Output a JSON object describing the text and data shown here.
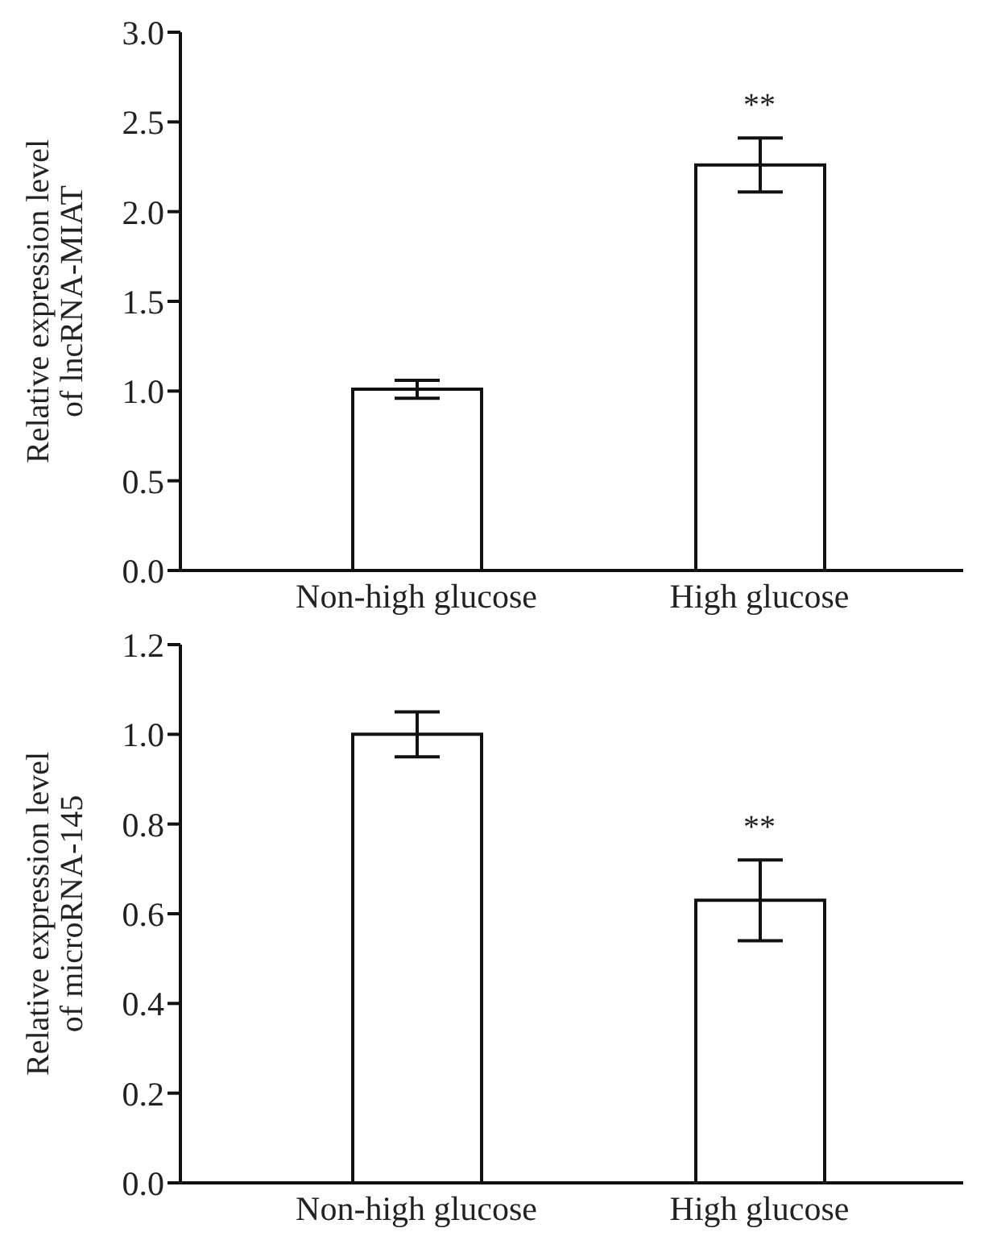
{
  "chart_data": [
    {
      "type": "bar",
      "ylabel": "Relative expression level\nof lncRNA-MIAT",
      "categories": [
        "Non-high glucose",
        "High glucose"
      ],
      "values": [
        1.01,
        2.26
      ],
      "errors": [
        0.05,
        0.15
      ],
      "color": "#ffffff",
      "ylim": [
        0,
        3.0
      ],
      "yticks": [
        {
          "value": 0,
          "label": "0.0"
        },
        {
          "value": 0.5,
          "label": "0.5"
        },
        {
          "value": 1,
          "label": "1.0"
        },
        {
          "value": 1.5,
          "label": "1.5"
        },
        {
          "value": 2,
          "label": "2.0"
        },
        {
          "value": 2.5,
          "label": "2.5"
        },
        {
          "value": 3,
          "label": "3.0"
        }
      ],
      "grid": false,
      "legend": false,
      "annotations": [
        {
          "text": "**",
          "x": "High glucose",
          "y": 2.26
        }
      ]
    },
    {
      "type": "bar",
      "ylabel": "Relative expression level\nof microRNA-145",
      "categories": [
        "Non-high glucose",
        "High glucose"
      ],
      "values": [
        1.0,
        0.63
      ],
      "errors": [
        0.05,
        0.09
      ],
      "color": "#ffffff",
      "ylim": [
        0,
        1.2
      ],
      "yticks": [
        {
          "value": 0,
          "label": "0.0"
        },
        {
          "value": 0.2,
          "label": "0.2"
        },
        {
          "value": 0.4,
          "label": "0.4"
        },
        {
          "value": 0.6,
          "label": "0.6"
        },
        {
          "value": 0.8,
          "label": "0.8"
        },
        {
          "value": 1.0,
          "label": "1.0"
        },
        {
          "value": 1.2,
          "label": "1.2"
        }
      ],
      "grid": false,
      "legend": false,
      "annotations": [
        {
          "text": "**",
          "x": "High glucose",
          "y": 0.63
        }
      ]
    }
  ]
}
